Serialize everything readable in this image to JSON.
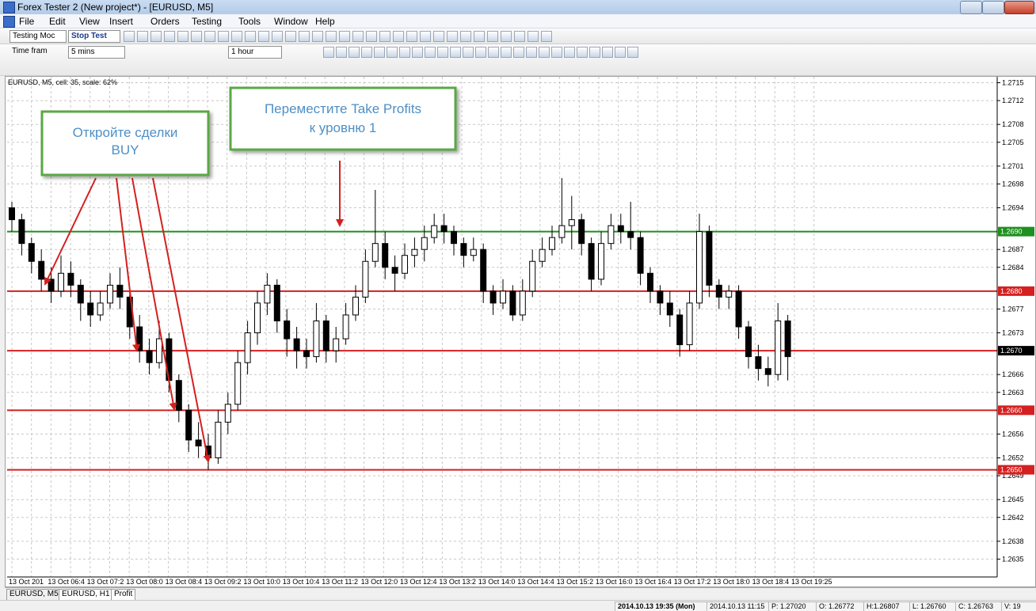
{
  "window": {
    "title": "Forex Tester 2  (New project*) - [EURUSD, M5]"
  },
  "menu": [
    "File",
    "Edit",
    "View",
    "Insert",
    "Orders",
    "Testing",
    "Tools",
    "Window",
    "Help"
  ],
  "toolbar": {
    "mode": "Testing Moc",
    "stop": "Stop Test",
    "timeframe_label": "Time fram",
    "timeframe": "5 mins",
    "interval": "1 hour"
  },
  "chart": {
    "type": "candlestick",
    "info": "EURUSD, M5, cell: 35, scale: 62%",
    "ylim": [
      1.2632,
      1.2716
    ],
    "yticks": [
      1.2715,
      1.2712,
      1.2708,
      1.2705,
      1.2701,
      1.2698,
      1.2694,
      1.2687,
      1.2684,
      1.2677,
      1.2673,
      1.2666,
      1.2663,
      1.2656,
      1.2652,
      1.2649,
      1.2645,
      1.2642,
      1.2638,
      1.2635
    ],
    "grid": true,
    "up_color": "#ffffff",
    "down_color": "#000000",
    "levels": [
      {
        "value": 1.269,
        "label": "1.2690",
        "color": "#1f8f1f",
        "label_color": "#1f8f1f"
      },
      {
        "value": 1.268,
        "label": "1.2680",
        "color": "#d42020",
        "label_color": "#d42020"
      },
      {
        "value": 1.267,
        "label": "1.2670",
        "color": "#d42020",
        "label_color": "#000000"
      },
      {
        "value": 1.266,
        "label": "1.2660",
        "color": "#d42020",
        "label_color": "#d42020"
      },
      {
        "value": 1.265,
        "label": "1.2650",
        "color": "#d42020",
        "label_color": "#d42020"
      }
    ],
    "xlabels": [
      "13 Oct 201",
      "13 Oct 06:4",
      "13 Oct 07:2",
      "13 Oct 08:0",
      "13 Oct 08:4",
      "13 Oct 09:2",
      "13 Oct 10:0",
      "13 Oct 10:4",
      "13 Oct 11:2",
      "13 Oct 12:0",
      "13 Oct 12:4",
      "13 Oct 13:2",
      "13 Oct 14:0",
      "13 Oct 14:4",
      "13 Oct 15:2",
      "13 Oct 16:0",
      "13 Oct 16:4",
      "13 Oct 17:2",
      "13 Oct 18:0",
      "13 Oct 18:4",
      "13 Oct 19:25"
    ],
    "candles": [
      [
        1.2694,
        1.2695,
        1.269,
        1.2692
      ],
      [
        1.2692,
        1.2693,
        1.2686,
        1.2688
      ],
      [
        1.2688,
        1.2689,
        1.2683,
        1.2685
      ],
      [
        1.2685,
        1.2687,
        1.268,
        1.2682
      ],
      [
        1.2682,
        1.2684,
        1.2678,
        1.268
      ],
      [
        1.268,
        1.2686,
        1.2679,
        1.2683
      ],
      [
        1.2683,
        1.2685,
        1.2679,
        1.2681
      ],
      [
        1.2681,
        1.2682,
        1.2675,
        1.2678
      ],
      [
        1.2678,
        1.268,
        1.2674,
        1.2676
      ],
      [
        1.2676,
        1.268,
        1.2675,
        1.2678
      ],
      [
        1.2678,
        1.2683,
        1.2677,
        1.2681
      ],
      [
        1.2681,
        1.2684,
        1.2677,
        1.2679
      ],
      [
        1.2679,
        1.268,
        1.2672,
        1.2674
      ],
      [
        1.2674,
        1.2676,
        1.2668,
        1.267
      ],
      [
        1.267,
        1.2672,
        1.2666,
        1.2668
      ],
      [
        1.2668,
        1.2675,
        1.2667,
        1.2672
      ],
      [
        1.2672,
        1.2673,
        1.2663,
        1.2665
      ],
      [
        1.2665,
        1.2666,
        1.2658,
        1.266
      ],
      [
        1.266,
        1.2661,
        1.2653,
        1.2655
      ],
      [
        1.2655,
        1.2658,
        1.2652,
        1.2654
      ],
      [
        1.2654,
        1.2656,
        1.265,
        1.2652
      ],
      [
        1.2652,
        1.266,
        1.2651,
        1.2658
      ],
      [
        1.2658,
        1.2663,
        1.2656,
        1.2661
      ],
      [
        1.2661,
        1.267,
        1.266,
        1.2668
      ],
      [
        1.2668,
        1.2675,
        1.2666,
        1.2673
      ],
      [
        1.2673,
        1.268,
        1.2671,
        1.2678
      ],
      [
        1.2678,
        1.2683,
        1.2676,
        1.2681
      ],
      [
        1.2681,
        1.2682,
        1.2673,
        1.2675
      ],
      [
        1.2675,
        1.2677,
        1.2669,
        1.2672
      ],
      [
        1.2672,
        1.2674,
        1.2667,
        1.267
      ],
      [
        1.267,
        1.2672,
        1.2667,
        1.2669
      ],
      [
        1.2669,
        1.2678,
        1.2668,
        1.2675
      ],
      [
        1.2675,
        1.2676,
        1.2668,
        1.267
      ],
      [
        1.267,
        1.2674,
        1.2668,
        1.2672
      ],
      [
        1.2672,
        1.2678,
        1.2671,
        1.2676
      ],
      [
        1.2676,
        1.2681,
        1.2675,
        1.2679
      ],
      [
        1.2679,
        1.2687,
        1.2678,
        1.2685
      ],
      [
        1.2685,
        1.2697,
        1.2684,
        1.2688
      ],
      [
        1.2688,
        1.269,
        1.2682,
        1.2684
      ],
      [
        1.2684,
        1.2686,
        1.268,
        1.2683
      ],
      [
        1.2683,
        1.2688,
        1.2682,
        1.2686
      ],
      [
        1.2686,
        1.2689,
        1.2684,
        1.2687
      ],
      [
        1.2687,
        1.2691,
        1.2685,
        1.2689
      ],
      [
        1.2689,
        1.2693,
        1.2688,
        1.2691
      ],
      [
        1.2691,
        1.2693,
        1.2688,
        1.269
      ],
      [
        1.269,
        1.2691,
        1.2686,
        1.2688
      ],
      [
        1.2688,
        1.2689,
        1.2684,
        1.2686
      ],
      [
        1.2686,
        1.2689,
        1.2685,
        1.2687
      ],
      [
        1.2687,
        1.2688,
        1.2678,
        1.268
      ],
      [
        1.268,
        1.2681,
        1.2676,
        1.2678
      ],
      [
        1.2678,
        1.2682,
        1.2677,
        1.268
      ],
      [
        1.268,
        1.2681,
        1.2675,
        1.2676
      ],
      [
        1.2676,
        1.2682,
        1.2675,
        1.268
      ],
      [
        1.268,
        1.2687,
        1.2679,
        1.2685
      ],
      [
        1.2685,
        1.2689,
        1.2684,
        1.2687
      ],
      [
        1.2687,
        1.2691,
        1.2686,
        1.2689
      ],
      [
        1.2689,
        1.2699,
        1.2688,
        1.2691
      ],
      [
        1.2691,
        1.2696,
        1.2687,
        1.2692
      ],
      [
        1.2692,
        1.2693,
        1.2686,
        1.2688
      ],
      [
        1.2688,
        1.2689,
        1.268,
        1.2682
      ],
      [
        1.2682,
        1.269,
        1.2681,
        1.2688
      ],
      [
        1.2688,
        1.2693,
        1.2687,
        1.2691
      ],
      [
        1.2691,
        1.2693,
        1.2688,
        1.269
      ],
      [
        1.269,
        1.2695,
        1.2687,
        1.2689
      ],
      [
        1.2689,
        1.269,
        1.2681,
        1.2683
      ],
      [
        1.2683,
        1.2684,
        1.2678,
        1.268
      ],
      [
        1.268,
        1.2681,
        1.2676,
        1.2678
      ],
      [
        1.2678,
        1.268,
        1.2674,
        1.2676
      ],
      [
        1.2676,
        1.2677,
        1.2669,
        1.2671
      ],
      [
        1.2671,
        1.268,
        1.267,
        1.2678
      ],
      [
        1.2678,
        1.2693,
        1.2677,
        1.269
      ],
      [
        1.269,
        1.2691,
        1.2679,
        1.2681
      ],
      [
        1.2681,
        1.2682,
        1.2677,
        1.2679
      ],
      [
        1.2679,
        1.2681,
        1.2677,
        1.268
      ],
      [
        1.268,
        1.2681,
        1.2672,
        1.2674
      ],
      [
        1.2674,
        1.2675,
        1.2667,
        1.2669
      ],
      [
        1.2669,
        1.2671,
        1.2665,
        1.2667
      ],
      [
        1.2667,
        1.2669,
        1.2664,
        1.2666
      ],
      [
        1.2666,
        1.2678,
        1.2665,
        1.2675
      ],
      [
        1.2675,
        1.2676,
        1.2665,
        1.2669
      ]
    ]
  },
  "annotations": [
    {
      "lines": [
        "Откройте сделки",
        "BUY"
      ]
    },
    {
      "lines": [
        "Переместите Take Profits",
        "к уровню 1"
      ]
    }
  ],
  "tabs": [
    "EURUSD, M5",
    "EURUSD, H1",
    "Profit"
  ],
  "status": [
    "2014.10.13 19:35 (Mon)",
    "2014.10.13 11:15",
    "P: 1.27020",
    "O: 1.26772",
    "H:1.26807",
    "L: 1.26760",
    "C: 1.26763",
    "V: 19"
  ]
}
